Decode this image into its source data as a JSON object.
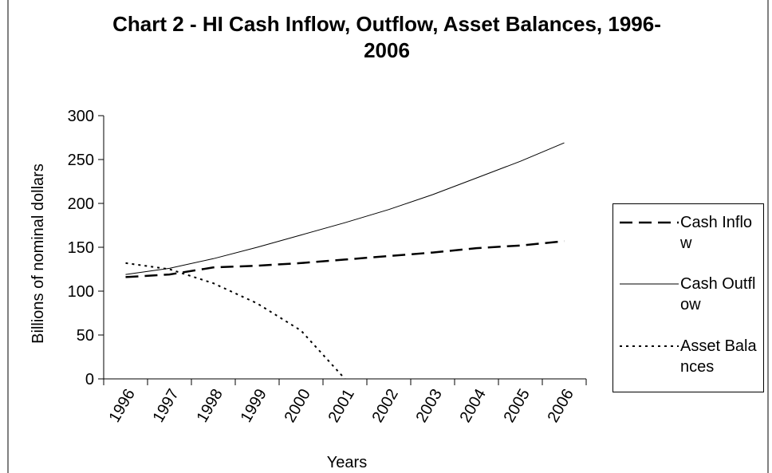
{
  "chart_data": {
    "type": "line",
    "title": "Chart 2 - HI Cash Inflow, Outflow, Asset Balances, 1996-2006",
    "x_label": "Years",
    "y_label": "Billions of nominal dollars",
    "categories": [
      "1996",
      "1997",
      "1998",
      "1999",
      "2000",
      "2001",
      "2002",
      "2003",
      "2004",
      "2005",
      "2006"
    ],
    "series": [
      {
        "name": "Cash Inflow",
        "color": "#000000",
        "values": [
          116,
          119,
          127,
          129,
          132,
          136,
          140,
          144,
          149,
          152,
          157
        ]
      },
      {
        "name": "Cash Outflow",
        "color": "#000000",
        "values": [
          119,
          126,
          137,
          150,
          164,
          178,
          193,
          210,
          229,
          248,
          269
        ]
      },
      {
        "name": "Asset Balances",
        "color": "#000000",
        "values": [
          132,
          125,
          109,
          86,
          55,
          0,
          null,
          null,
          null,
          null,
          null
        ]
      }
    ],
    "ylim": [
      0,
      300
    ],
    "yticks": [
      0,
      50,
      100,
      150,
      200,
      250,
      300
    ],
    "legend": "right",
    "grid": false
  }
}
